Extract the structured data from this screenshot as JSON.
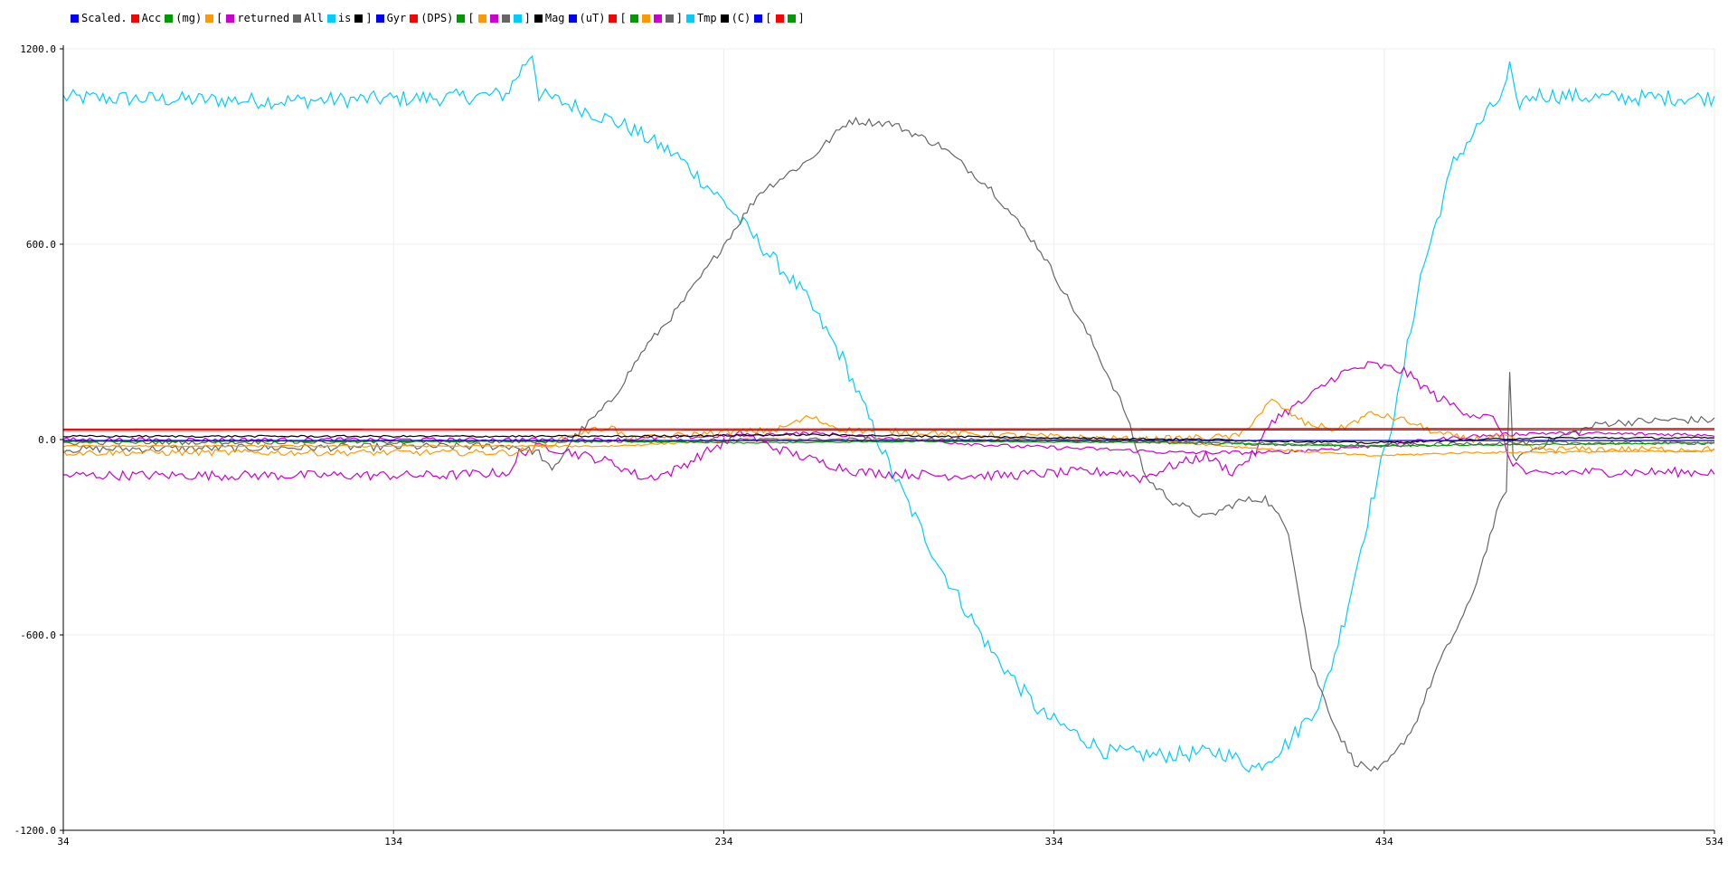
{
  "legend": [
    {
      "label": "Scaled.",
      "color": "#0000ff"
    },
    {
      "label": "Acc",
      "color": "#ff0000"
    },
    {
      "label": "(mg)",
      "color": "#009900"
    },
    {
      "label": "[",
      "color": "#ff9900"
    },
    {
      "label": "returned",
      "color": "#cc00cc"
    },
    {
      "label": "All",
      "color": "#666666"
    },
    {
      "label": "is",
      "color": "#00ccff"
    },
    {
      "label": "]",
      "color": "#000000"
    },
    {
      "label": "Gyr",
      "color": "#0000ff"
    },
    {
      "label": "(DPS)",
      "color": "#ff0000"
    },
    {
      "label": "[",
      "color": "#009900"
    },
    {
      "label": "",
      "color": "#ff9900"
    },
    {
      "label": "",
      "color": "#cc00cc"
    },
    {
      "label": "",
      "color": "#666666"
    },
    {
      "label": "]",
      "color": "#00ccff"
    },
    {
      "label": "Mag",
      "color": "#000000"
    },
    {
      "label": "(uT)",
      "color": "#0000ff"
    },
    {
      "label": "[",
      "color": "#ff0000"
    },
    {
      "label": "",
      "color": "#009900"
    },
    {
      "label": "",
      "color": "#ff9900"
    },
    {
      "label": "",
      "color": "#cc00cc"
    },
    {
      "label": "]",
      "color": "#666666"
    },
    {
      "label": "Tmp",
      "color": "#00ccff"
    },
    {
      "label": "(C)",
      "color": "#000000"
    },
    {
      "label": "[",
      "color": "#0000ff"
    },
    {
      "label": "",
      "color": "#ff0000"
    },
    {
      "label": "]",
      "color": "#009900"
    }
  ],
  "chart_data": {
    "type": "line",
    "title": "",
    "xlabel": "",
    "ylabel": "",
    "xlim": [
      34,
      534
    ],
    "ylim": [
      -1200,
      1200
    ],
    "xticks": [
      "34",
      "134",
      "234",
      "334",
      "434",
      "534"
    ],
    "yticks": [
      "1200.0",
      "600.0",
      "0.0",
      "-600.0",
      "-1200.0"
    ],
    "grid": true,
    "legend_position": "top-left",
    "series": [
      {
        "color": "#00ccff",
        "noise": 25,
        "points": [
          [
            34,
            1050
          ],
          [
            100,
            1040
          ],
          [
            150,
            1050
          ],
          [
            168,
            1060
          ],
          [
            176,
            1190
          ],
          [
            178,
            1060
          ],
          [
            190,
            1020
          ],
          [
            205,
            960
          ],
          [
            220,
            870
          ],
          [
            235,
            720
          ],
          [
            245,
            600
          ],
          [
            258,
            450
          ],
          [
            270,
            250
          ],
          [
            285,
            -100
          ],
          [
            300,
            -400
          ],
          [
            315,
            -650
          ],
          [
            330,
            -840
          ],
          [
            350,
            -960
          ],
          [
            365,
            -970
          ],
          [
            385,
            -960
          ],
          [
            395,
            -1010
          ],
          [
            405,
            -930
          ],
          [
            415,
            -800
          ],
          [
            422,
            -550
          ],
          [
            430,
            -200
          ],
          [
            438,
            120
          ],
          [
            445,
            500
          ],
          [
            455,
            850
          ],
          [
            465,
            1000
          ],
          [
            470,
            1060
          ],
          [
            472,
            1140
          ],
          [
            474,
            1030
          ],
          [
            480,
            1060
          ],
          [
            500,
            1050
          ],
          [
            534,
            1050
          ]
        ]
      },
      {
        "color": "#666666",
        "noise": 12,
        "points": [
          [
            34,
            -30
          ],
          [
            170,
            -20
          ],
          [
            178,
            -40
          ],
          [
            182,
            -100
          ],
          [
            188,
            0
          ],
          [
            200,
            120
          ],
          [
            210,
            280
          ],
          [
            220,
            400
          ],
          [
            230,
            540
          ],
          [
            245,
            760
          ],
          [
            260,
            860
          ],
          [
            272,
            980
          ],
          [
            285,
            970
          ],
          [
            300,
            900
          ],
          [
            315,
            770
          ],
          [
            330,
            580
          ],
          [
            345,
            310
          ],
          [
            355,
            100
          ],
          [
            362,
            -120
          ],
          [
            370,
            -190
          ],
          [
            380,
            -240
          ],
          [
            390,
            -190
          ],
          [
            398,
            -180
          ],
          [
            405,
            -280
          ],
          [
            412,
            -700
          ],
          [
            420,
            -900
          ],
          [
            425,
            -990
          ],
          [
            432,
            -1020
          ],
          [
            437,
            -970
          ],
          [
            443,
            -880
          ],
          [
            450,
            -700
          ],
          [
            460,
            -500
          ],
          [
            468,
            -230
          ],
          [
            471,
            -150
          ],
          [
            472,
            200
          ],
          [
            473,
            -60
          ],
          [
            485,
            0
          ],
          [
            500,
            50
          ],
          [
            520,
            60
          ],
          [
            534,
            60
          ]
        ]
      },
      {
        "color": "#cc00cc",
        "noise": 15,
        "points": [
          [
            34,
            -110
          ],
          [
            150,
            -110
          ],
          [
            170,
            -100
          ],
          [
            172,
            -40
          ],
          [
            180,
            -20
          ],
          [
            200,
            -70
          ],
          [
            210,
            -120
          ],
          [
            218,
            -100
          ],
          [
            232,
            -20
          ],
          [
            240,
            20
          ],
          [
            248,
            -20
          ],
          [
            260,
            -60
          ],
          [
            275,
            -100
          ],
          [
            300,
            -110
          ],
          [
            320,
            -110
          ],
          [
            340,
            -100
          ],
          [
            355,
            -100
          ],
          [
            360,
            -120
          ],
          [
            370,
            -80
          ],
          [
            380,
            -50
          ],
          [
            388,
            -100
          ],
          [
            395,
            -40
          ],
          [
            400,
            60
          ],
          [
            410,
            120
          ],
          [
            420,
            200
          ],
          [
            430,
            230
          ],
          [
            440,
            210
          ],
          [
            450,
            130
          ],
          [
            460,
            80
          ],
          [
            468,
            60
          ],
          [
            472,
            -60
          ],
          [
            478,
            -110
          ],
          [
            490,
            -100
          ],
          [
            510,
            -100
          ],
          [
            534,
            -100
          ]
        ]
      },
      {
        "color": "#cc00cc",
        "noise": 6,
        "points": [
          [
            34,
            0
          ],
          [
            200,
            0
          ],
          [
            230,
            10
          ],
          [
            260,
            20
          ],
          [
            290,
            0
          ],
          [
            320,
            -20
          ],
          [
            350,
            -30
          ],
          [
            370,
            -40
          ],
          [
            400,
            -40
          ],
          [
            430,
            -20
          ],
          [
            460,
            10
          ],
          [
            480,
            20
          ],
          [
            534,
            15
          ]
        ]
      },
      {
        "color": "#ff9900",
        "noise": 10,
        "points": [
          [
            34,
            -40
          ],
          [
            170,
            -40
          ],
          [
            180,
            -20
          ],
          [
            190,
            20
          ],
          [
            200,
            40
          ],
          [
            205,
            0
          ],
          [
            230,
            20
          ],
          [
            250,
            30
          ],
          [
            260,
            70
          ],
          [
            270,
            30
          ],
          [
            300,
            20
          ],
          [
            330,
            10
          ],
          [
            360,
            0
          ],
          [
            390,
            10
          ],
          [
            400,
            120
          ],
          [
            410,
            50
          ],
          [
            420,
            30
          ],
          [
            430,
            80
          ],
          [
            440,
            60
          ],
          [
            450,
            20
          ],
          [
            460,
            0
          ],
          [
            470,
            10
          ],
          [
            480,
            -30
          ],
          [
            534,
            -30
          ]
        ]
      },
      {
        "color": "#ff9900",
        "noise": 3,
        "points": [
          [
            34,
            -20
          ],
          [
            200,
            -20
          ],
          [
            240,
            0
          ],
          [
            300,
            0
          ],
          [
            360,
            0
          ],
          [
            400,
            -30
          ],
          [
            430,
            -50
          ],
          [
            460,
            -40
          ],
          [
            534,
            -35
          ]
        ]
      },
      {
        "color": "#666666",
        "noise": 6,
        "points": [
          [
            34,
            -10
          ],
          [
            200,
            -5
          ],
          [
            260,
            0
          ],
          [
            330,
            0
          ],
          [
            380,
            -10
          ],
          [
            430,
            -20
          ],
          [
            470,
            -10
          ],
          [
            534,
            -10
          ]
        ]
      },
      {
        "color": "#000000",
        "noise": 3,
        "points": [
          [
            34,
            10
          ],
          [
            200,
            10
          ],
          [
            260,
            15
          ],
          [
            300,
            10
          ],
          [
            380,
            0
          ],
          [
            430,
            -10
          ],
          [
            480,
            5
          ],
          [
            534,
            5
          ]
        ]
      },
      {
        "color": "#009900",
        "noise": 2,
        "points": [
          [
            34,
            -5
          ],
          [
            200,
            -5
          ],
          [
            240,
            -10
          ],
          [
            300,
            -5
          ],
          [
            380,
            -10
          ],
          [
            430,
            -20
          ],
          [
            480,
            -15
          ],
          [
            534,
            -10
          ]
        ]
      },
      {
        "color": "#0000ff",
        "noise": 0,
        "points": [
          [
            34,
            -3
          ],
          [
            534,
            -3
          ]
        ]
      },
      {
        "color": "#ff0000",
        "noise": 0,
        "points": [
          [
            34,
            28
          ],
          [
            534,
            30
          ]
        ]
      },
      {
        "color": "#cc0000",
        "noise": 0,
        "points": [
          [
            34,
            32
          ],
          [
            534,
            34
          ]
        ]
      }
    ]
  }
}
